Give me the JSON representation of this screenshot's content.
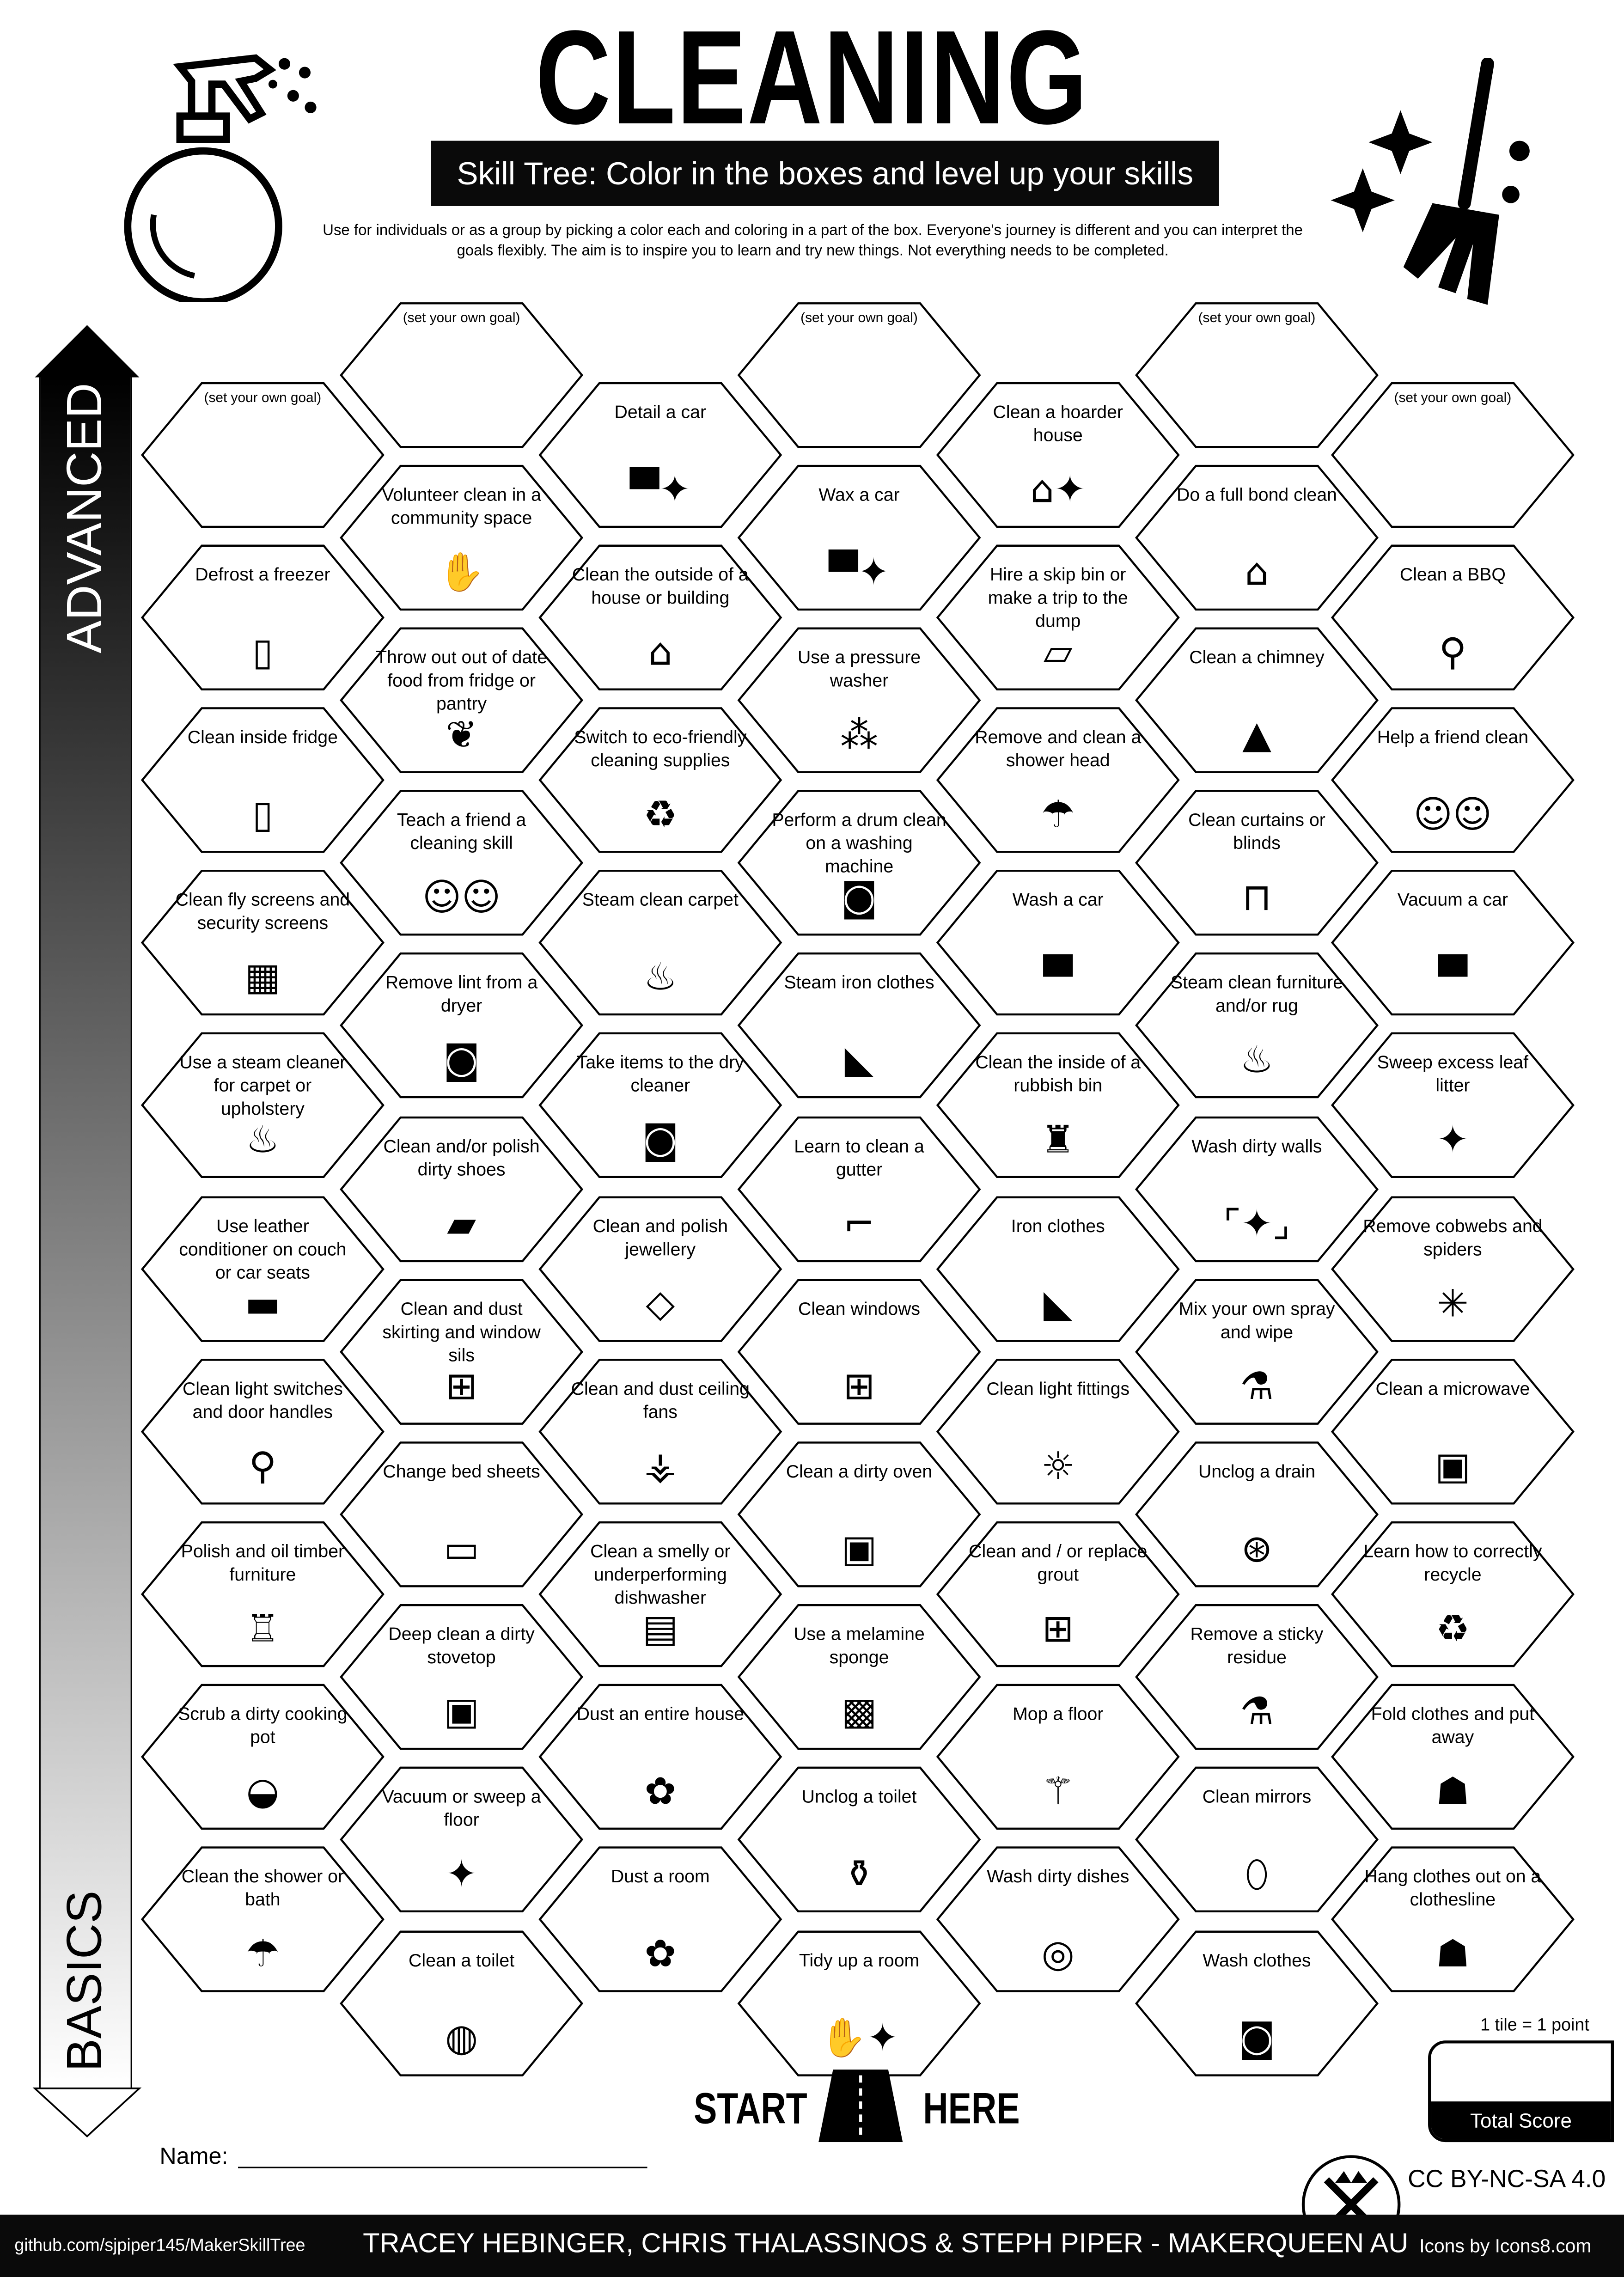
{
  "header": {
    "title": "CLEANING",
    "subtitle": "Skill Tree:  Color in the boxes and level up your skills",
    "intro": "Use for individuals or as a group by picking a color each and coloring in a part of the box.  Everyone's journey is different and you can interpret the goals flexibly.  The aim is to inspire you to learn and try new things. Not everything needs to be completed."
  },
  "axis": {
    "top": "ADVANCED",
    "bottom": "BASICS"
  },
  "columns": [
    [
      {
        "t": "(set your own goal)",
        "i": ""
      },
      {
        "t": "Defrost a freezer",
        "i": "fridge-icon"
      },
      {
        "t": "Clean inside fridge",
        "i": "fridge-icon"
      },
      {
        "t": "Clean fly screens and security screens",
        "i": "screen-grid-icon"
      },
      {
        "t": "Use a steam cleaner for carpet or upholstery",
        "i": "steam-icon"
      },
      {
        "t": "Use leather conditioner on couch or car seats",
        "i": "couch-icon"
      },
      {
        "t": "Clean light switches and door handles",
        "i": "door-handle-icon"
      },
      {
        "t": "Polish and oil timber furniture",
        "i": "chair-icon"
      },
      {
        "t": "Scrub a dirty cooking pot",
        "i": "pot-icon"
      },
      {
        "t": "Clean the shower or bath",
        "i": "shower-icon"
      }
    ],
    [
      {
        "t": "(set your own goal)",
        "i": ""
      },
      {
        "t": "Volunteer clean in a community space",
        "i": "hand-heart-icon"
      },
      {
        "t": "Throw out out of date food from fridge or pantry",
        "i": "rotten-food-icon"
      },
      {
        "t": "Teach a friend a cleaning skill",
        "i": "people-icon"
      },
      {
        "t": "Remove lint from a dryer",
        "i": "dryer-icon"
      },
      {
        "t": "Clean and/or polish dirty shoes",
        "i": "shoe-icon"
      },
      {
        "t": "Clean and dust skirting and window sils",
        "i": "window-icon"
      },
      {
        "t": "Change bed sheets",
        "i": "bed-icon"
      },
      {
        "t": "Deep clean a dirty stovetop",
        "i": "oven-icon"
      },
      {
        "t": "Vacuum or sweep a floor",
        "i": "broom-icon"
      },
      {
        "t": "Clean a toilet",
        "i": "toilet-icon"
      }
    ],
    [
      {
        "t": "Detail a car",
        "i": "car-sparkle-icon"
      },
      {
        "t": "Clean the outside of a house or building",
        "i": "house-icon"
      },
      {
        "t": "Switch to eco-friendly cleaning supplies",
        "i": "eco-recycle-icon"
      },
      {
        "t": "Steam clean carpet",
        "i": "steam-icon"
      },
      {
        "t": "Take items to the dry cleaner",
        "i": "washing-machine-icon"
      },
      {
        "t": "Clean and polish jewellery",
        "i": "necklace-icon"
      },
      {
        "t": "Clean and dust ceiling fans",
        "i": "ceiling-fan-icon"
      },
      {
        "t": "Clean a smelly or underperforming dishwasher",
        "i": "dishwasher-icon"
      },
      {
        "t": "Dust an entire house",
        "i": "duster-icon"
      },
      {
        "t": "Dust a room",
        "i": "duster-icon"
      }
    ],
    [
      {
        "t": "(set your own goal)",
        "i": ""
      },
      {
        "t": "Wax a car",
        "i": "car-sparkle-icon"
      },
      {
        "t": "Use a pressure washer",
        "i": "sprinkler-icon"
      },
      {
        "t": "Perform a drum clean on a washing machine",
        "i": "washing-machine-icon"
      },
      {
        "t": "Steam iron clothes",
        "i": "iron-icon"
      },
      {
        "t": "Learn to clean a gutter",
        "i": "gutter-icon"
      },
      {
        "t": "Clean windows",
        "i": "window-icon"
      },
      {
        "t": "Clean a dirty oven",
        "i": "oven-icon"
      },
      {
        "t": "Use a melamine sponge",
        "i": "sponge-icon"
      },
      {
        "t": "Unclog a toilet",
        "i": "plunger-icon"
      },
      {
        "t": "Tidy up a room",
        "i": "hands-sparkle-icon"
      }
    ],
    [
      {
        "t": "Clean a hoarder house",
        "i": "house-sparkle-icon"
      },
      {
        "t": "Hire a skip bin or make a trip to the dump",
        "i": "skip-bin-icon"
      },
      {
        "t": "Remove and clean a shower head",
        "i": "shower-icon"
      },
      {
        "t": "Wash a car",
        "i": "car-icon"
      },
      {
        "t": "Clean the inside of a rubbish bin",
        "i": "trash-icon"
      },
      {
        "t": "Iron clothes",
        "i": "iron-icon"
      },
      {
        "t": "Clean light fittings",
        "i": "light-bulb-icon"
      },
      {
        "t": "Clean and / or replace grout",
        "i": "tiles-icon"
      },
      {
        "t": "Mop a floor",
        "i": "mop-icon"
      },
      {
        "t": "Wash dirty dishes",
        "i": "dishes-icon"
      }
    ],
    [
      {
        "t": "(set your own goal)",
        "i": ""
      },
      {
        "t": "Do a full bond clean",
        "i": "house-icon"
      },
      {
        "t": "Clean a chimney",
        "i": "roof-icon"
      },
      {
        "t": "Clean curtains or blinds",
        "i": "curtains-icon"
      },
      {
        "t": "Steam clean furniture and/or rug",
        "i": "steam-icon"
      },
      {
        "t": "Wash dirty walls",
        "i": "wall-sparkle-icon"
      },
      {
        "t": "Mix your own spray and wipe",
        "i": "spray-bottle-icon"
      },
      {
        "t": "Unclog a drain",
        "i": "drain-icon"
      },
      {
        "t": "Remove a sticky residue",
        "i": "spray-bottle-icon"
      },
      {
        "t": "Clean mirrors",
        "i": "mirror-icon"
      },
      {
        "t": "Wash clothes",
        "i": "washing-machine-icon"
      }
    ],
    [
      {
        "t": "(set your own goal)",
        "i": ""
      },
      {
        "t": "Clean a BBQ",
        "i": "bbq-icon"
      },
      {
        "t": "Help a friend clean",
        "i": "people-icon"
      },
      {
        "t": "Vacuum a car",
        "i": "car-icon"
      },
      {
        "t": "Sweep excess leaf litter",
        "i": "broom-icon"
      },
      {
        "t": "Remove cobwebs and spiders",
        "i": "cobweb-icon"
      },
      {
        "t": "Clean a microwave",
        "i": "microwave-icon"
      },
      {
        "t": "Learn how to correctly recycle",
        "i": "recycle-icon"
      },
      {
        "t": "Fold clothes and put away",
        "i": "tshirt-icon"
      },
      {
        "t": "Hang clothes out on a clothesline",
        "i": "tshirt-icon"
      }
    ]
  ],
  "start": {
    "left": "START",
    "right": "HERE",
    "icon": "road-icon"
  },
  "name_label": "Name:",
  "score": {
    "note": "1 tile = 1 point",
    "label": "Total Score"
  },
  "license": "CC BY-NC-SA 4.0",
  "footer": {
    "github": "github.com/sjpiper145/MakerSkillTree",
    "authors": "TRACEY HEBINGER, CHRIS THALASSINOS & STEPH PIPER  -  MAKERQUEEN AU",
    "icons": "Icons by Icons8.com"
  },
  "logo_text": "MAKERQUEEN"
}
